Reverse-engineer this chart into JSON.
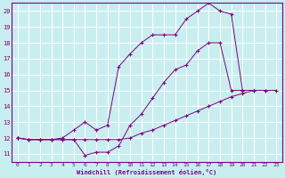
{
  "xlabel": "Windchill (Refroidissement éolien,°C)",
  "background_color": "#c8eef0",
  "grid_color": "#ffffff",
  "line_color": "#800080",
  "xlim": [
    -0.5,
    23.5
  ],
  "ylim": [
    10.5,
    20.5
  ],
  "yticks": [
    11,
    12,
    13,
    14,
    15,
    16,
    17,
    18,
    19,
    20
  ],
  "xticks": [
    0,
    1,
    2,
    3,
    4,
    5,
    6,
    7,
    8,
    9,
    10,
    11,
    12,
    13,
    14,
    15,
    16,
    17,
    18,
    19,
    20,
    21,
    22,
    23
  ],
  "series": [
    {
      "x": [
        0,
        1,
        2,
        3,
        4,
        5,
        6,
        7,
        8,
        9,
        10,
        11,
        12,
        13,
        14,
        15,
        16,
        17,
        18,
        19,
        20,
        21,
        22,
        23
      ],
      "y": [
        12.0,
        11.9,
        11.9,
        11.9,
        11.9,
        11.9,
        11.9,
        11.9,
        11.9,
        11.9,
        12.0,
        12.3,
        12.5,
        12.8,
        13.1,
        13.4,
        13.7,
        14.0,
        14.3,
        14.6,
        14.8,
        15.0,
        15.0,
        15.0
      ]
    },
    {
      "x": [
        0,
        1,
        2,
        3,
        4,
        5,
        6,
        7,
        8,
        9,
        10,
        11,
        12,
        13,
        14,
        15,
        16,
        17,
        18,
        19,
        20,
        21,
        22,
        23
      ],
      "y": [
        12.0,
        11.9,
        11.9,
        11.9,
        11.9,
        11.9,
        10.9,
        11.1,
        11.1,
        11.5,
        12.8,
        13.5,
        14.5,
        15.5,
        16.3,
        16.6,
        17.5,
        18.0,
        18.0,
        15.0,
        15.0,
        15.0,
        15.0,
        null
      ]
    },
    {
      "x": [
        0,
        1,
        2,
        3,
        4,
        5,
        6,
        7,
        8,
        9,
        10,
        11,
        12,
        13,
        14,
        15,
        16,
        17,
        18,
        19,
        20
      ],
      "y": [
        12.0,
        11.9,
        11.9,
        11.9,
        12.0,
        12.5,
        13.0,
        12.5,
        12.8,
        16.5,
        17.3,
        18.0,
        18.5,
        18.5,
        18.5,
        19.5,
        20.0,
        20.5,
        20.0,
        19.8,
        15.0
      ]
    }
  ]
}
